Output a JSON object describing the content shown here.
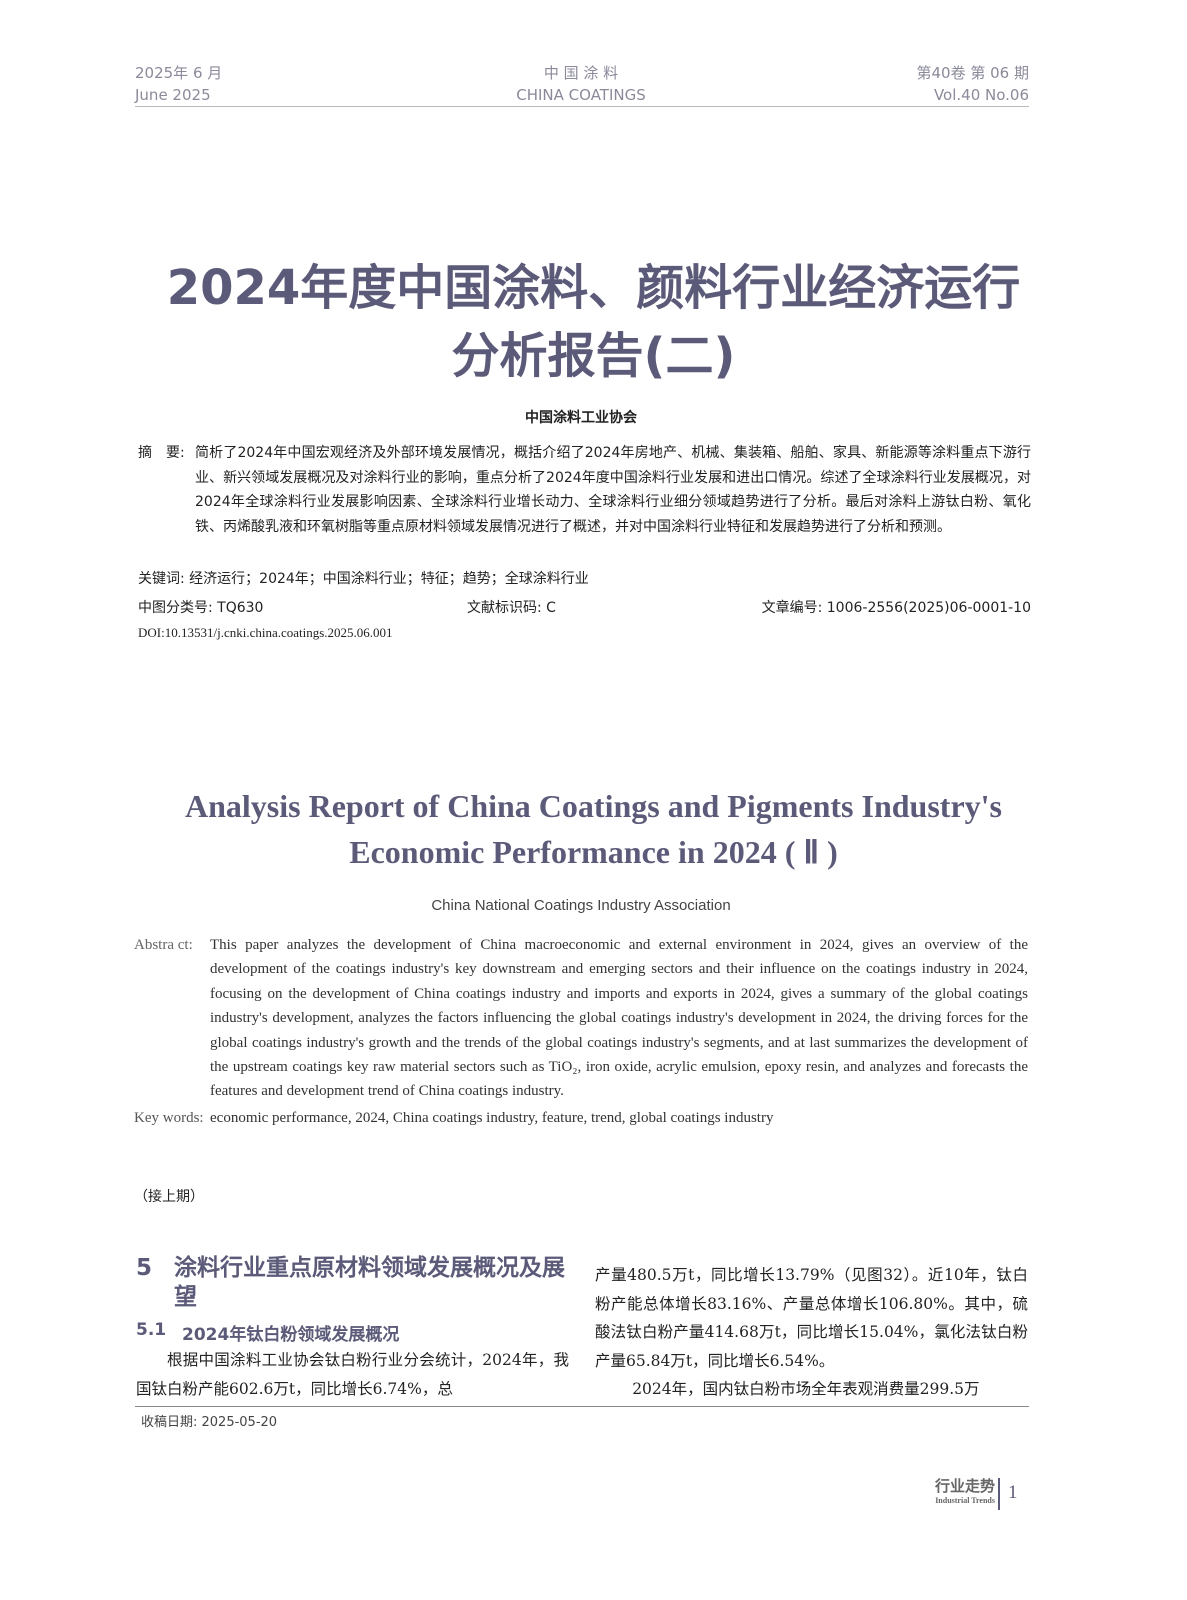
{
  "header": {
    "date_cn": "2025年 6 月",
    "date_en": "June 2025",
    "journal_cn": "中 国 涂 料",
    "journal_en": "CHINA COATINGS",
    "volume_cn": "第40卷 第 06 期",
    "volume_en": "Vol.40  No.06"
  },
  "title_cn": [
    "2024年度中国涂料、颜料行业经济运行",
    "分析报告(二)"
  ],
  "author_cn": "中国涂料工业协会",
  "abstract_cn": {
    "label": "摘　要:",
    "text": "简析了2024年中国宏观经济及外部环境发展情况，概括介绍了2024年房地产、机械、集装箱、船舶、家具、新能源等涂料重点下游行业、新兴领域发展概况及对涂料行业的影响，重点分析了2024年度中国涂料行业发展和进出口情况。综述了全球涂料行业发展概况，对2024年全球涂料行业发展影响因素、全球涂料行业增长动力、全球涂料行业细分领域趋势进行了分析。最后对涂料上游钛白粉、氧化铁、丙烯酸乳液和环氧树脂等重点原材料领域发展情况进行了概述，并对中国涂料行业特征和发展趋势进行了分析和预测。"
  },
  "keywords_cn": "关键词: 经济运行；2024年；中国涂料行业；特征；趋势；全球涂料行业",
  "classification": "中图分类号: TQ630",
  "doc_code": "文献标识码: C",
  "article_no": "文章编号: 1006-2556(2025)06-0001-10",
  "doi": "DOI:10.13531/j.cnki.china.coatings.2025.06.001",
  "title_en": [
    "Analysis Report of China Coatings and Pigments Industry's",
    "Economic Performance in 2024 ( Ⅱ )"
  ],
  "author_en": "China National Coatings Industry Association",
  "abstract_en": {
    "label": "Abstra ct:",
    "text": "This paper analyzes the development of China macroeconomic and external environment in 2024, gives an overview of the development of the coatings industry's key downstream and emerging sectors and their influence on the coatings industry in 2024, focusing on the development of China coatings industry and imports and exports in 2024, gives a summary of the global coatings industry's development, analyzes the factors influencing the global coatings industry's development in 2024, the driving forces for the global coatings industry's growth and the trends of the global coatings industry's segments, and at last summarizes the development of the upstream coatings key raw material sectors such as TiO₂, iron oxide, acrylic emulsion, epoxy resin, and analyzes and forecasts the features and development trend of China coatings industry."
  },
  "keywords_en": {
    "label": "Key words:",
    "text": "economic performance, 2024, China coatings industry, feature, trend, global coatings industry"
  },
  "continued": "（接上期）",
  "section5": {
    "num": "5",
    "title": "涂料行业重点原材料领域发展概况及展望"
  },
  "section51": {
    "num": "5.1",
    "title": "2024年钛白粉领域发展概况"
  },
  "body_left": "根据中国涂料工业协会钛白粉行业分会统计，2024年，我国钛白粉产能602.6万t，同比增长6.74%，总",
  "body_right_p1": "产量480.5万t，同比增长13.79%（见图32）。近10年，钛白粉产能总体增长83.16%、产量总体增长106.80%。其中，硫酸法钛白粉产量414.68万t，同比增长15.04%，氯化法钛白粉产量65.84万t，同比增长6.54%。",
  "body_right_p2": "2024年，国内钛白粉市场全年表观消费量299.5万",
  "received": "收稿日期: 2025-05-20",
  "footer": {
    "section_cn": "行业走势",
    "section_en": "Industrial Trends",
    "page": "1"
  }
}
